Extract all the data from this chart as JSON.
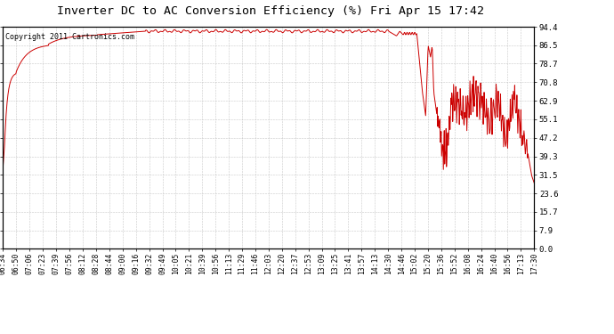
{
  "title": "Inverter DC to AC Conversion Efficiency (%) Fri Apr 15 17:42",
  "copyright_text": "Copyright 2011 Cartronics.com",
  "line_color": "#cc0000",
  "bg_color": "#ffffff",
  "plot_bg_color": "#ffffff",
  "grid_color": "#bbbbbb",
  "yticks": [
    0.0,
    7.9,
    15.7,
    23.6,
    31.5,
    39.3,
    47.2,
    55.1,
    62.9,
    70.8,
    78.7,
    86.5,
    94.4
  ],
  "xtick_labels": [
    "06:34",
    "06:50",
    "07:06",
    "07:23",
    "07:39",
    "07:56",
    "08:12",
    "08:28",
    "08:44",
    "09:00",
    "09:16",
    "09:32",
    "09:49",
    "10:05",
    "10:21",
    "10:39",
    "10:56",
    "11:13",
    "11:29",
    "11:46",
    "12:03",
    "12:20",
    "12:37",
    "12:53",
    "13:09",
    "13:25",
    "13:41",
    "13:57",
    "14:13",
    "14:30",
    "14:46",
    "15:02",
    "15:20",
    "15:36",
    "15:52",
    "16:08",
    "16:24",
    "16:40",
    "16:56",
    "17:13",
    "17:30"
  ],
  "ymin": 0.0,
  "ymax": 94.4,
  "title_fontsize": 9.5,
  "copyright_fontsize": 6.0,
  "tick_fontsize": 6.5,
  "xtick_fontsize": 5.8
}
